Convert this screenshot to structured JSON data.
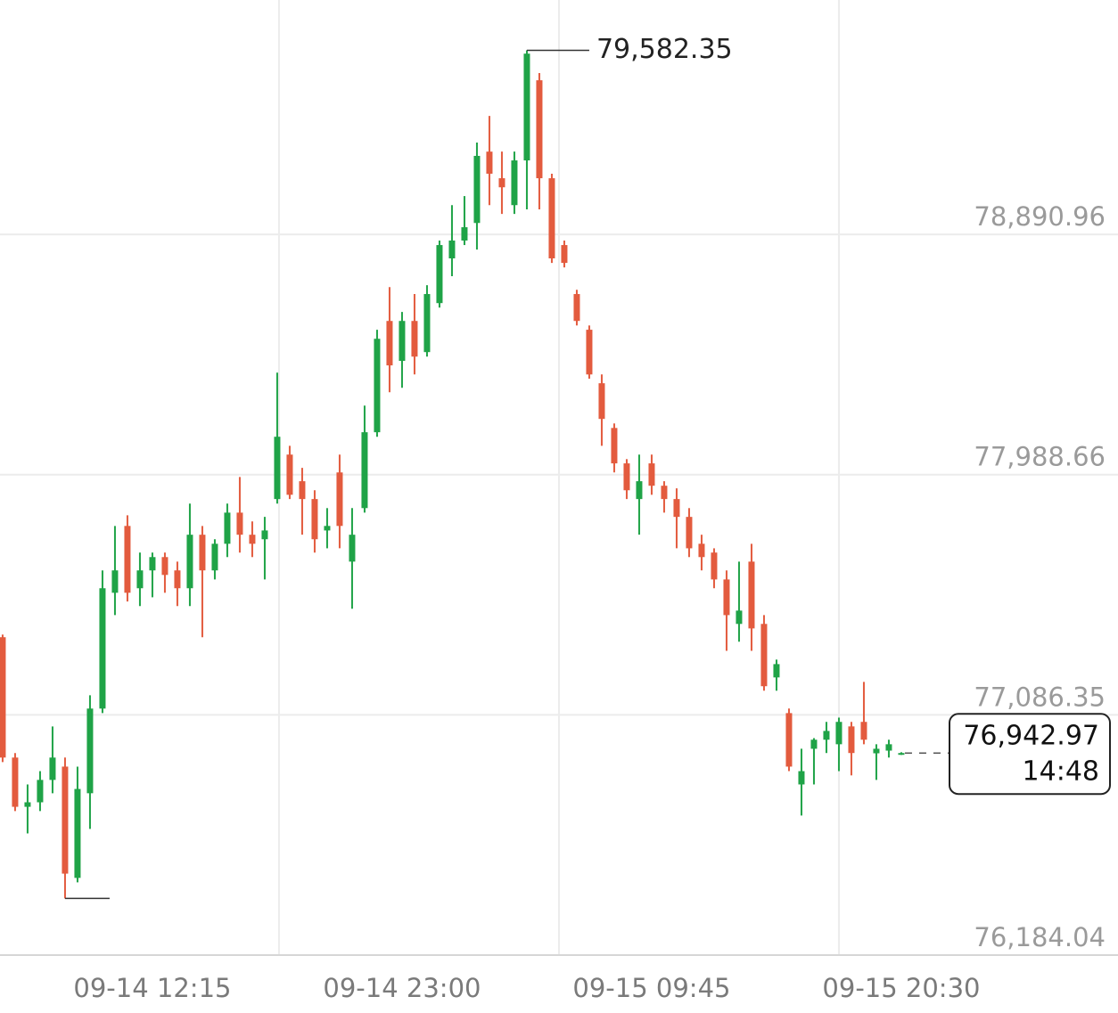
{
  "chart_data": {
    "type": "candlestick",
    "up_color": "#1fa347",
    "down_color": "#e35b3e",
    "open": [
      77378,
      76926,
      76741,
      76758,
      76842,
      76892,
      76474,
      76792,
      77110,
      77545,
      77796,
      77562,
      77629,
      77679,
      77629,
      77562,
      77763,
      77629,
      77729,
      77846,
      77763,
      77746,
      77897,
      78064,
      77964,
      77897,
      77779,
      77997,
      77662,
      77863,
      78148,
      78566,
      78416,
      78566,
      78449,
      78633,
      78801,
      78868,
      78934,
      79202,
      79102,
      79001,
      79169,
      79470,
      79102,
      78851,
      78667,
      78533,
      78332,
      78164,
      78031,
      77897,
      78031,
      77947,
      77897,
      77830,
      77729,
      77696,
      77595,
      77428,
      77662,
      77428,
      77227,
      77093,
      76825,
      76959,
      76993,
      76976,
      77043,
      77060,
      76942,
      76952,
      76939
    ],
    "high": [
      77388,
      76943,
      76825,
      76875,
      77043,
      76926,
      76892,
      77160,
      77629,
      77796,
      77836,
      77696,
      77696,
      77696,
      77662,
      77880,
      77796,
      77746,
      77880,
      77980,
      77813,
      77830,
      78372,
      78097,
      78014,
      77930,
      77863,
      78064,
      77863,
      78248,
      78533,
      78693,
      78600,
      78667,
      78700,
      78868,
      79001,
      79035,
      79236,
      79336,
      79202,
      79202,
      79582.35,
      79497,
      79119,
      78868,
      78683,
      78549,
      78365,
      78181,
      78047,
      78064,
      78064,
      77964,
      77937,
      77863,
      77763,
      77712,
      77629,
      77662,
      77729,
      77461,
      77294,
      77110,
      76959,
      76999,
      77060,
      77076,
      77060,
      77210,
      76976,
      76993,
      76946
    ],
    "low": [
      76909,
      76725,
      76641,
      76725,
      76792,
      76397,
      76457,
      76658,
      77093,
      77461,
      77512,
      77495,
      77528,
      77545,
      77495,
      77495,
      77378,
      77595,
      77679,
      77696,
      77679,
      77595,
      77880,
      77897,
      77763,
      77696,
      77712,
      77712,
      77485,
      77846,
      78131,
      78298,
      78315,
      78365,
      78432,
      78616,
      78734,
      78851,
      78834,
      79001,
      78968,
      78968,
      78985,
      78985,
      78784,
      78767,
      78549,
      78349,
      78097,
      77997,
      77897,
      77763,
      77913,
      77846,
      77712,
      77679,
      77629,
      77562,
      77327,
      77361,
      77327,
      77177,
      77177,
      76875,
      76708,
      76825,
      76943,
      76875,
      76859,
      76976,
      76842,
      76926,
      76936
    ],
    "close": [
      76926,
      76741,
      76758,
      76842,
      76926,
      76490,
      76808,
      77110,
      77562,
      77629,
      77545,
      77629,
      77679,
      77612,
      77562,
      77763,
      77629,
      77729,
      77846,
      77763,
      77729,
      77779,
      78131,
      77913,
      77897,
      77746,
      77796,
      77796,
      77763,
      78148,
      78499,
      78399,
      78566,
      78432,
      78667,
      78851,
      78868,
      78918,
      79186,
      79119,
      79068,
      79169,
      79570,
      79102,
      78801,
      78784,
      78566,
      78365,
      78198,
      78031,
      77930,
      77964,
      77947,
      77897,
      77830,
      77712,
      77679,
      77595,
      77461,
      77478,
      77411,
      77194,
      77277,
      76892,
      76875,
      76993,
      77026,
      77060,
      76943,
      76993,
      76959,
      76976,
      76942.97
    ],
    "xlim": [
      -0.21,
      89.36
    ],
    "ylim": [
      76184.04,
      79771.5
    ],
    "yticks": [
      {
        "value": 76184.04,
        "label": "76,184.04"
      },
      {
        "value": 77086.35,
        "label": "77,086.35"
      },
      {
        "value": 77988.66,
        "label": "77,988.66"
      },
      {
        "value": 78890.96,
        "label": "78,890.96"
      }
    ],
    "xticks": [
      {
        "value": 12,
        "label": "09-14 12:15"
      },
      {
        "value": 32,
        "label": "09-14 23:00"
      },
      {
        "value": 52,
        "label": "09-15 09:45"
      },
      {
        "value": 72,
        "label": "09-15 20:30"
      }
    ],
    "xgrid": [
      22.14,
      44.57,
      67
    ],
    "max_label": {
      "value": 79582.35,
      "label": "79,582.35"
    },
    "last_price": {
      "value": 76942.97,
      "label": "76,942.97"
    },
    "last_time": "14:48"
  }
}
